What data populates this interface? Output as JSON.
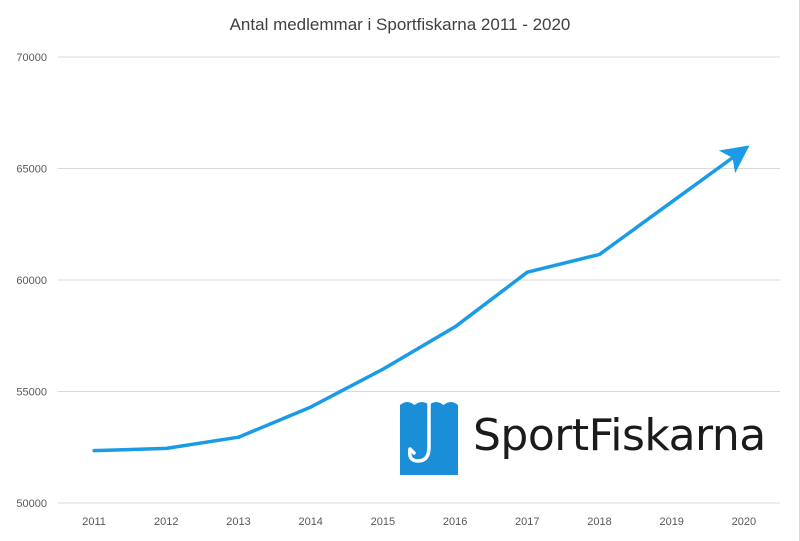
{
  "chart_data": {
    "type": "line",
    "title": "Antal medlemmar i Sportfiskarna 2011 - 2020",
    "xlabel": "",
    "ylabel": "",
    "x": [
      "2011",
      "2012",
      "2013",
      "2014",
      "2015",
      "2016",
      "2017",
      "2018",
      "2019",
      "2020"
    ],
    "series": [
      {
        "values": [
          52350,
          52450,
          52950,
          54300,
          56000,
          57900,
          60350,
          61150,
          63500,
          65850
        ],
        "color": "#1a9be6",
        "end_marker": "arrow"
      }
    ],
    "ylim": [
      50000,
      70000
    ],
    "yticks": [
      50000,
      55000,
      60000,
      65000,
      70000
    ],
    "grid": "horizontal",
    "legend": "none"
  },
  "logo": {
    "text": "SportFiskarna",
    "icon": "fish-hook-icon",
    "color": "#1a8fd8"
  }
}
